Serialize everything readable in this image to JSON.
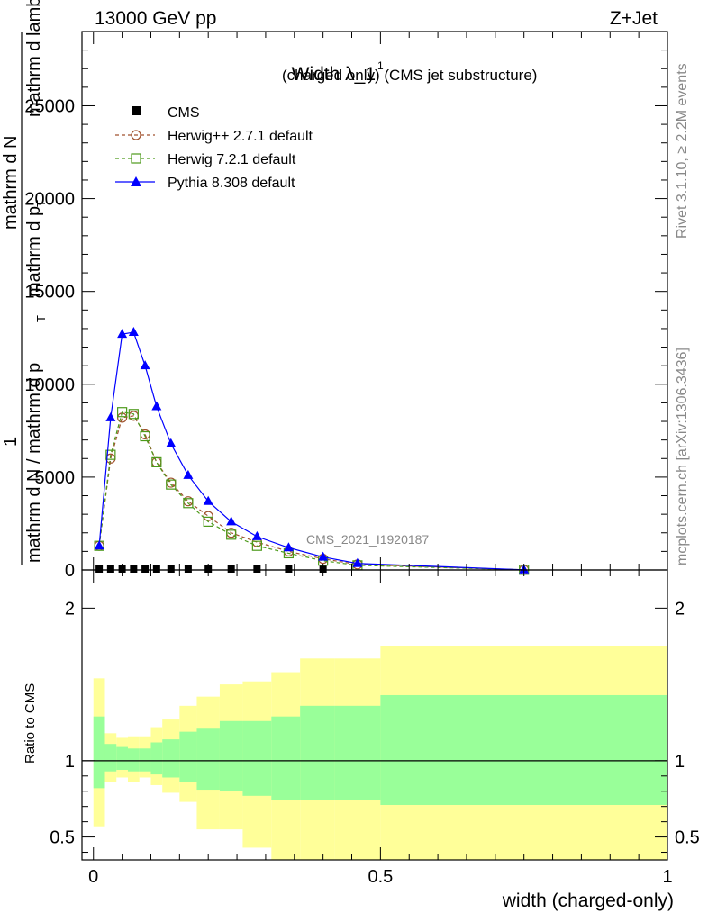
{
  "header": {
    "left": "13000 GeV pp",
    "right": "Z+Jet"
  },
  "side_labels": {
    "rivet": "Rivet 3.1.10, ≥ 2.2M events",
    "mcplots": "mcplots.cern.ch [arXiv:1306.3436]"
  },
  "watermark": "CMS_2021_I1920187",
  "chart_data": [
    {
      "type": "line",
      "title": "Width λ_1¹ (charged only) (CMS jet substructure)",
      "title_main": "Width λ_1",
      "title_sup": "1",
      "title_sub": "(charged only) (CMS jet substructure)",
      "ylabel_parts": [
        "1",
        "mathrm d N / mathrm d p",
        "T",
        "mathrm d N",
        "mathrm d p",
        "T",
        "mathrm d lambda"
      ],
      "ylim": [
        0,
        29000
      ],
      "yticks": [
        0,
        5000,
        10000,
        15000,
        20000,
        25000
      ],
      "ytick_labels": [
        "0",
        "5000",
        "10000",
        "15000",
        "20000",
        "25000"
      ],
      "xlim": [
        -0.02,
        1.0
      ],
      "legend": {
        "placement": "top-left",
        "entries": [
          "CMS",
          "Herwig++ 2.7.1 default",
          "Herwig 7.2.1 default",
          "Pythia 8.308 default"
        ]
      },
      "series": [
        {
          "name": "CMS",
          "color": "#000000",
          "marker": "filled-square",
          "x": [
            0.01,
            0.03,
            0.05,
            0.07,
            0.09,
            0.11,
            0.135,
            0.165,
            0.2,
            0.24,
            0.285,
            0.34,
            0.4
          ],
          "y": [
            0,
            0,
            0,
            0,
            0,
            0,
            0,
            0,
            0,
            0,
            0,
            0,
            0
          ]
        },
        {
          "name": "Herwig++ 2.7.1 default",
          "color": "#a0522d",
          "marker": "open-circle",
          "dashed": true,
          "x": [
            0.01,
            0.03,
            0.05,
            0.07,
            0.09,
            0.11,
            0.135,
            0.165,
            0.2,
            0.24,
            0.285,
            0.34,
            0.4,
            0.46,
            0.75
          ],
          "y": [
            1300,
            6000,
            8200,
            8300,
            7300,
            5800,
            4700,
            3700,
            2900,
            2000,
            1500,
            1000,
            600,
            300,
            10
          ]
        },
        {
          "name": "Herwig 7.2.1 default",
          "color": "#4c9a1a",
          "marker": "open-square",
          "dashed": true,
          "x": [
            0.01,
            0.03,
            0.05,
            0.07,
            0.09,
            0.11,
            0.135,
            0.165,
            0.2,
            0.24,
            0.285,
            0.34,
            0.4,
            0.46,
            0.75
          ],
          "y": [
            1300,
            6200,
            8500,
            8400,
            7200,
            5800,
            4600,
            3600,
            2600,
            1900,
            1300,
            900,
            500,
            250,
            10
          ]
        },
        {
          "name": "Pythia 8.308 default",
          "color": "#0000ff",
          "marker": "filled-triangle",
          "dashed": false,
          "x": [
            0.01,
            0.03,
            0.05,
            0.07,
            0.09,
            0.11,
            0.135,
            0.165,
            0.2,
            0.24,
            0.285,
            0.34,
            0.4,
            0.46,
            0.75
          ],
          "y": [
            1300,
            8200,
            12700,
            12800,
            11000,
            8800,
            6800,
            5100,
            3700,
            2600,
            1800,
            1200,
            700,
            350,
            10
          ]
        }
      ]
    },
    {
      "type": "area",
      "ylabel": "Ratio to CMS",
      "xlabel": "width (charged-only)",
      "xlim": [
        -0.02,
        1.0
      ],
      "ylim": [
        0.35,
        2.25
      ],
      "xticks": [
        0,
        0.5,
        1
      ],
      "xtick_labels": [
        "0",
        "0.5",
        "1"
      ],
      "yticks": [
        0.5,
        1,
        2
      ],
      "ytick_labels": [
        "0.5",
        "1",
        "2"
      ],
      "reference_line": 1,
      "bins": [
        0.0,
        0.02,
        0.04,
        0.06,
        0.08,
        0.1,
        0.12,
        0.15,
        0.18,
        0.22,
        0.26,
        0.31,
        0.36,
        0.42,
        0.5,
        1.0
      ],
      "bands": [
        {
          "name": "outer",
          "color": "#ffff99",
          "low": [
            0.57,
            0.86,
            0.89,
            0.86,
            0.89,
            0.84,
            0.79,
            0.73,
            0.55,
            0.55,
            0.43,
            0.3,
            0.3,
            0.3,
            0.3
          ],
          "high": [
            1.54,
            1.18,
            1.15,
            1.16,
            1.16,
            1.22,
            1.27,
            1.36,
            1.42,
            1.5,
            1.52,
            1.58,
            1.67,
            1.67,
            1.75
          ]
        },
        {
          "name": "inner",
          "color": "#99ff99",
          "low": [
            0.82,
            0.93,
            0.94,
            0.93,
            0.93,
            0.91,
            0.89,
            0.86,
            0.81,
            0.8,
            0.77,
            0.74,
            0.74,
            0.74,
            0.71
          ],
          "high": [
            1.29,
            1.11,
            1.09,
            1.08,
            1.08,
            1.12,
            1.14,
            1.19,
            1.21,
            1.26,
            1.26,
            1.29,
            1.36,
            1.36,
            1.43
          ]
        }
      ]
    }
  ]
}
